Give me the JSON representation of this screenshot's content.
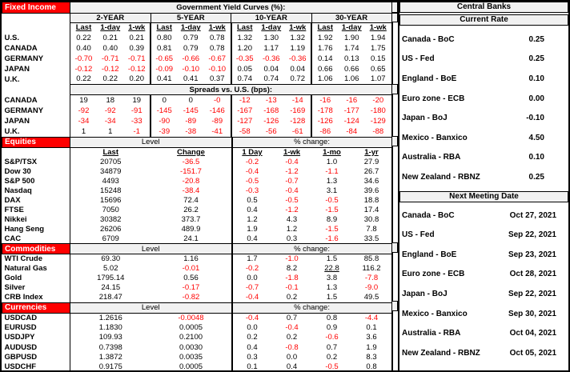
{
  "colors": {
    "accent_red": "#ff0000",
    "negative_text": "#ff0000",
    "header_bg": "#f1f1f1",
    "border": "#000000"
  },
  "fixed_income": {
    "section_label": "Fixed Income",
    "title": "Government Yield Curves (%):",
    "groups": [
      "2-YEAR",
      "5-YEAR",
      "10-YEAR",
      "30-YEAR"
    ],
    "col_headers": [
      "Last",
      "1-day",
      "1-wk"
    ],
    "yield_rows": [
      {
        "label": "U.S.",
        "values": [
          "0.22",
          "0.21",
          "0.21",
          "0.80",
          "0.79",
          "0.78",
          "1.32",
          "1.30",
          "1.32",
          "1.92",
          "1.90",
          "1.94"
        ]
      },
      {
        "label": "CANADA",
        "values": [
          "0.40",
          "0.40",
          "0.39",
          "0.81",
          "0.79",
          "0.78",
          "1.20",
          "1.17",
          "1.19",
          "1.76",
          "1.74",
          "1.75"
        ]
      },
      {
        "label": "GERMANY",
        "values": [
          "-0.70",
          "-0.71",
          "-0.71",
          "-0.65",
          "-0.66",
          "-0.67",
          "-0.35",
          "-0.36",
          "-0.36",
          "0.14",
          "0.13",
          "0.15"
        ]
      },
      {
        "label": "JAPAN",
        "values": [
          "-0.12",
          "-0.12",
          "-0.12",
          "-0.09",
          "-0.10",
          "-0.10",
          "0.05",
          "0.04",
          "0.04",
          "0.66",
          "0.66",
          "0.65"
        ]
      },
      {
        "label": "U.K.",
        "values": [
          "0.22",
          "0.22",
          "0.20",
          "0.41",
          "0.41",
          "0.37",
          "0.74",
          "0.74",
          "0.72",
          "1.06",
          "1.06",
          "1.07"
        ]
      }
    ],
    "spreads_title": "Spreads vs. U.S. (bps):",
    "spread_rows": [
      {
        "label": "CANADA",
        "values": [
          "19",
          "18",
          "19",
          "0",
          "0",
          "-0",
          "-12",
          "-13",
          "-14",
          "-16",
          "-16",
          "-20"
        ]
      },
      {
        "label": "GERMANY",
        "values": [
          "-92",
          "-92",
          "-91",
          "-145",
          "-145",
          "-146",
          "-167",
          "-168",
          "-169",
          "-178",
          "-177",
          "-180"
        ]
      },
      {
        "label": "JAPAN",
        "values": [
          "-34",
          "-34",
          "-33",
          "-90",
          "-89",
          "-89",
          "-127",
          "-126",
          "-128",
          "-126",
          "-124",
          "-129"
        ]
      },
      {
        "label": "U.K.",
        "values": [
          "1",
          "1",
          "-1",
          "-39",
          "-38",
          "-41",
          "-58",
          "-56",
          "-61",
          "-86",
          "-84",
          "-88"
        ]
      }
    ]
  },
  "equities": {
    "section_label": "Equities",
    "level_header": "Level",
    "pct_header": "% change:",
    "col_headers": [
      "Last",
      "Change",
      "1 Day",
      "1-wk",
      "1-mo",
      "1-yr"
    ],
    "rows": [
      {
        "label": "S&P/TSX",
        "values": [
          "20705",
          "-36.5",
          "-0.2",
          "-0.4",
          "1.0",
          "27.9"
        ]
      },
      {
        "label": "Dow 30",
        "values": [
          "34879",
          "-151.7",
          "-0.4",
          "-1.2",
          "-1.1",
          "26.7"
        ]
      },
      {
        "label": "S&P 500",
        "values": [
          "4493",
          "-20.8",
          "-0.5",
          "-0.7",
          "1.3",
          "34.6"
        ]
      },
      {
        "label": "Nasdaq",
        "values": [
          "15248",
          "-38.4",
          "-0.3",
          "-0.4",
          "3.1",
          "39.6"
        ]
      },
      {
        "label": "DAX",
        "values": [
          "15696",
          "72.4",
          "0.5",
          "-0.5",
          "-0.5",
          "18.8"
        ]
      },
      {
        "label": "FTSE",
        "values": [
          "7050",
          "26.2",
          "0.4",
          "-1.2",
          "-1.5",
          "17.4"
        ]
      },
      {
        "label": "Nikkei",
        "values": [
          "30382",
          "373.7",
          "1.2",
          "4.3",
          "8.9",
          "30.8"
        ]
      },
      {
        "label": "Hang Seng",
        "values": [
          "26206",
          "489.9",
          "1.9",
          "1.2",
          "-1.5",
          "7.8"
        ]
      },
      {
        "label": "CAC",
        "values": [
          "6709",
          "24.1",
          "0.4",
          "0.3",
          "-1.6",
          "33.5"
        ]
      }
    ]
  },
  "commodities": {
    "section_label": "Commodities",
    "level_header": "Level",
    "pct_header": "% change:",
    "rows": [
      {
        "label": "WTI Crude",
        "values": [
          "69.30",
          "1.16",
          "1.7",
          "-1.0",
          "1.5",
          "85.8"
        ]
      },
      {
        "label": "Natural Gas",
        "values": [
          "5.02",
          "-0.01",
          "-0.2",
          "8.2",
          "22.8",
          "116.2"
        ],
        "underline": 4
      },
      {
        "label": "Gold",
        "values": [
          "1795.14",
          "0.56",
          "0.0",
          "-1.8",
          "3.8",
          "-7.8"
        ]
      },
      {
        "label": "Silver",
        "values": [
          "24.15",
          "-0.17",
          "-0.7",
          "-0.1",
          "1.3",
          "-9.0"
        ]
      },
      {
        "label": "CRB Index",
        "values": [
          "218.47",
          "-0.82",
          "-0.4",
          "0.2",
          "1.5",
          "49.5"
        ]
      }
    ]
  },
  "currencies": {
    "section_label": "Currencies",
    "level_header": "Level",
    "pct_header": "% change:",
    "rows": [
      {
        "label": "USDCAD",
        "values": [
          "1.2616",
          "-0.0048",
          "-0.4",
          "0.7",
          "0.8",
          "-4.4"
        ]
      },
      {
        "label": "EURUSD",
        "values": [
          "1.1830",
          "0.0005",
          "0.0",
          "-0.4",
          "0.9",
          "0.1"
        ]
      },
      {
        "label": "USDJPY",
        "values": [
          "109.93",
          "0.2100",
          "0.2",
          "0.2",
          "-0.6",
          "3.6"
        ]
      },
      {
        "label": "AUDUSD",
        "values": [
          "0.7398",
          "0.0030",
          "0.4",
          "-0.8",
          "0.7",
          "1.9"
        ]
      },
      {
        "label": "GBPUSD",
        "values": [
          "1.3872",
          "0.0035",
          "0.3",
          "0.0",
          "0.2",
          "8.3"
        ]
      },
      {
        "label": "USDCHF",
        "values": [
          "0.9175",
          "0.0005",
          "0.1",
          "0.4",
          "-0.5",
          "0.8"
        ]
      }
    ]
  },
  "central_banks": {
    "title": "Central Banks",
    "current_rate_header": "Current Rate",
    "rates": [
      {
        "label": "Canada - BoC",
        "value": "0.25"
      },
      {
        "label": "US - Fed",
        "value": "0.25"
      },
      {
        "label": "England - BoE",
        "value": "0.10"
      },
      {
        "label": "Euro zone - ECB",
        "value": "0.00"
      },
      {
        "label": "Japan - BoJ",
        "value": "-0.10"
      },
      {
        "label": "Mexico - Banxico",
        "value": "4.50"
      },
      {
        "label": "Australia - RBA",
        "value": "0.10"
      },
      {
        "label": "New Zealand - RBNZ",
        "value": "0.25"
      }
    ],
    "next_meeting_header": "Next Meeting Date",
    "meetings": [
      {
        "label": "Canada - BoC",
        "value": "Oct 27, 2021"
      },
      {
        "label": "US - Fed",
        "value": "Sep 22, 2021"
      },
      {
        "label": "England - BoE",
        "value": "Sep 23, 2021"
      },
      {
        "label": "Euro zone - ECB",
        "value": "Oct 28, 2021"
      },
      {
        "label": "Japan - BoJ",
        "value": "Sep 22, 2021"
      },
      {
        "label": "Mexico - Banxico",
        "value": "Sep 30, 2021"
      },
      {
        "label": "Australia - RBA",
        "value": "Oct 04, 2021"
      },
      {
        "label": "New Zealand - RBNZ",
        "value": "Oct 05, 2021"
      }
    ]
  }
}
